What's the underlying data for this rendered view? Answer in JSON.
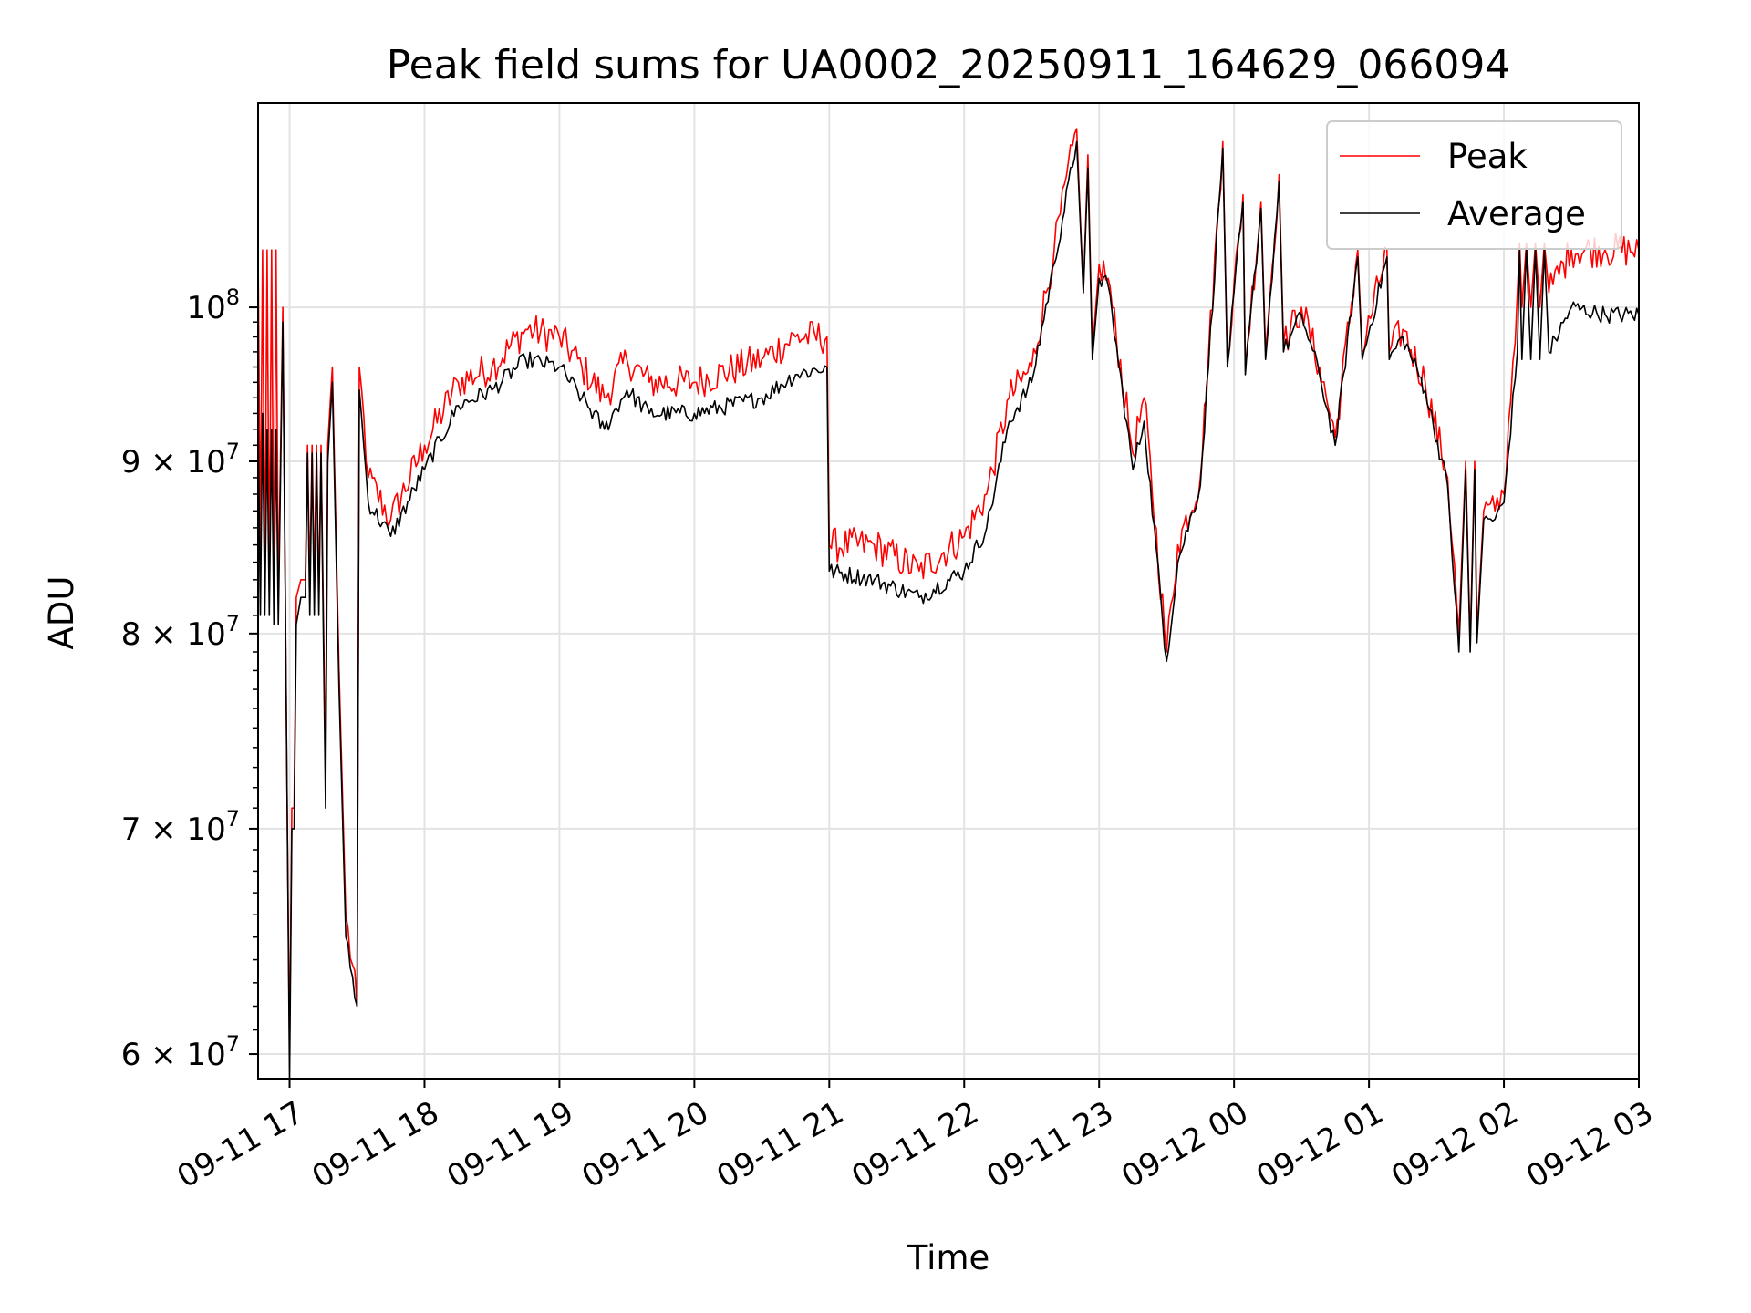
{
  "chart_data": {
    "type": "line",
    "title": "Peak field sums for UA0002_20250911_164629_066094",
    "xlabel": "Time",
    "ylabel": "ADU",
    "y_scale": "log",
    "xlim": [
      "2025-09-11 16:46",
      "2025-09-12 03:00"
    ],
    "ylim": [
      59000000,
      115000000
    ],
    "grid": true,
    "legend_position": "top-right",
    "x_ticks": [
      {
        "time": "2025-09-11 17:00",
        "label": "09-11 17"
      },
      {
        "time": "2025-09-11 18:00",
        "label": "09-11 18"
      },
      {
        "time": "2025-09-11 19:00",
        "label": "09-11 19"
      },
      {
        "time": "2025-09-11 20:00",
        "label": "09-11 20"
      },
      {
        "time": "2025-09-11 21:00",
        "label": "09-11 21"
      },
      {
        "time": "2025-09-11 22:00",
        "label": "09-11 22"
      },
      {
        "time": "2025-09-11 23:00",
        "label": "09-11 23"
      },
      {
        "time": "2025-09-12 00:00",
        "label": "09-12 00"
      },
      {
        "time": "2025-09-12 01:00",
        "label": "09-12 01"
      },
      {
        "time": "2025-09-12 02:00",
        "label": "09-12 02"
      },
      {
        "time": "2025-09-12 03:00",
        "label": "09-12 03"
      }
    ],
    "y_ticks": [
      {
        "value": 60000000,
        "mantissa": "6",
        "base": "10",
        "exp": "7"
      },
      {
        "value": 70000000,
        "mantissa": "7",
        "base": "10",
        "exp": "7"
      },
      {
        "value": 80000000,
        "mantissa": "8",
        "base": "10",
        "exp": "7"
      },
      {
        "value": 90000000,
        "mantissa": "9",
        "base": "10",
        "exp": "7"
      },
      {
        "value": 100000000,
        "mantissa": "",
        "base": "10",
        "exp": "8"
      }
    ],
    "series": [
      {
        "name": "Peak",
        "color": "#ff0000",
        "noise": 0.012,
        "points": [
          [
            "2025-09-11 16:46",
            104000000
          ],
          [
            "2025-09-11 16:47",
            85000000
          ],
          [
            "2025-09-11 16:48",
            104000000
          ],
          [
            "2025-09-11 16:49",
            83000000
          ],
          [
            "2025-09-11 16:50",
            104000000
          ],
          [
            "2025-09-11 16:51",
            83000000
          ],
          [
            "2025-09-11 16:52",
            104000000
          ],
          [
            "2025-09-11 16:53",
            82000000
          ],
          [
            "2025-09-11 16:54",
            104000000
          ],
          [
            "2025-09-11 16:55",
            82000000
          ],
          [
            "2025-09-11 16:57",
            100000000
          ],
          [
            "2025-09-11 16:59",
            70000000
          ],
          [
            "2025-09-11 17:00",
            60000000
          ],
          [
            "2025-09-11 17:01",
            71000000
          ],
          [
            "2025-09-11 17:02",
            71000000
          ],
          [
            "2025-09-11 17:03",
            82000000
          ],
          [
            "2025-09-11 17:05",
            83000000
          ],
          [
            "2025-09-11 17:07",
            83000000
          ],
          [
            "2025-09-11 17:08",
            91000000
          ],
          [
            "2025-09-11 17:09",
            83000000
          ],
          [
            "2025-09-11 17:10",
            91000000
          ],
          [
            "2025-09-11 17:11",
            83000000
          ],
          [
            "2025-09-11 17:12",
            91000000
          ],
          [
            "2025-09-11 17:13",
            82000000
          ],
          [
            "2025-09-11 17:14",
            91000000
          ],
          [
            "2025-09-11 17:16",
            73000000
          ],
          [
            "2025-09-11 17:17",
            91000000
          ],
          [
            "2025-09-11 17:19",
            96000000
          ],
          [
            "2025-09-11 17:22",
            78000000
          ],
          [
            "2025-09-11 17:25",
            66000000
          ],
          [
            "2025-09-11 17:30",
            62000000
          ],
          [
            "2025-09-11 17:31",
            96000000
          ],
          [
            "2025-09-11 17:35",
            89000000
          ],
          [
            "2025-09-11 17:45",
            86500000
          ],
          [
            "2025-09-11 18:00",
            91000000
          ],
          [
            "2025-09-11 18:15",
            95000000
          ],
          [
            "2025-09-11 18:30",
            96000000
          ],
          [
            "2025-09-11 18:45",
            98500000
          ],
          [
            "2025-09-11 19:00",
            98000000
          ],
          [
            "2025-09-11 19:10",
            96000000
          ],
          [
            "2025-09-11 19:20",
            94000000
          ],
          [
            "2025-09-11 19:30",
            96500000
          ],
          [
            "2025-09-11 19:40",
            95000000
          ],
          [
            "2025-09-11 20:00",
            95000000
          ],
          [
            "2025-09-11 20:30",
            96500000
          ],
          [
            "2025-09-11 20:45",
            98000000
          ],
          [
            "2025-09-11 20:59",
            98000000
          ],
          [
            "2025-09-11 21:00",
            85000000
          ],
          [
            "2025-09-11 21:20",
            85000000
          ],
          [
            "2025-09-11 21:40",
            83500000
          ],
          [
            "2025-09-11 22:00",
            85500000
          ],
          [
            "2025-09-11 22:10",
            88000000
          ],
          [
            "2025-09-11 22:20",
            94000000
          ],
          [
            "2025-09-11 22:30",
            96000000
          ],
          [
            "2025-09-11 22:40",
            104000000
          ],
          [
            "2025-09-11 22:50",
            113000000
          ],
          [
            "2025-09-11 22:53",
            101000000
          ],
          [
            "2025-09-11 22:55",
            111000000
          ],
          [
            "2025-09-11 22:57",
            97000000
          ],
          [
            "2025-09-11 23:00",
            103000000
          ],
          [
            "2025-09-11 23:04",
            102000000
          ],
          [
            "2025-09-11 23:15",
            90500000
          ],
          [
            "2025-09-11 23:20",
            94000000
          ],
          [
            "2025-09-11 23:30",
            79000000
          ],
          [
            "2025-09-11 23:35",
            85000000
          ],
          [
            "2025-09-11 23:45",
            89000000
          ],
          [
            "2025-09-11 23:55",
            112000000
          ],
          [
            "2025-09-11 23:57",
            96500000
          ],
          [
            "2025-09-12 00:04",
            108000000
          ],
          [
            "2025-09-12 00:05",
            96000000
          ],
          [
            "2025-09-12 00:12",
            107500000
          ],
          [
            "2025-09-12 00:14",
            97000000
          ],
          [
            "2025-09-12 00:20",
            109500000
          ],
          [
            "2025-09-12 00:22",
            97500000
          ],
          [
            "2025-09-12 00:30",
            100000000
          ],
          [
            "2025-09-12 00:38",
            96000000
          ],
          [
            "2025-09-12 00:45",
            91500000
          ],
          [
            "2025-09-12 00:55",
            104000000
          ],
          [
            "2025-09-12 00:57",
            97000000
          ],
          [
            "2025-09-12 01:08",
            104000000
          ],
          [
            "2025-09-12 01:09",
            97000000
          ],
          [
            "2025-09-12 01:15",
            98500000
          ],
          [
            "2025-09-12 01:25",
            95000000
          ],
          [
            "2025-09-12 01:35",
            89000000
          ],
          [
            "2025-09-12 01:40",
            80000000
          ],
          [
            "2025-09-12 01:43",
            90000000
          ],
          [
            "2025-09-12 01:45",
            79500000
          ],
          [
            "2025-09-12 01:47",
            90000000
          ],
          [
            "2025-09-12 01:48",
            80000000
          ],
          [
            "2025-09-12 01:51",
            87000000
          ],
          [
            "2025-09-12 01:56",
            87000000
          ],
          [
            "2025-09-12 02:00",
            88000000
          ],
          [
            "2025-09-12 02:06",
            101000000
          ],
          [
            "2025-09-12 02:07",
            104500000
          ],
          [
            "2025-09-12 02:08",
            100000000
          ],
          [
            "2025-09-12 02:10",
            104500000
          ],
          [
            "2025-09-12 02:12",
            100000000
          ],
          [
            "2025-09-12 02:14",
            104500000
          ],
          [
            "2025-09-12 02:16",
            100000000
          ],
          [
            "2025-09-12 02:18",
            104500000
          ],
          [
            "2025-09-12 02:20",
            101000000
          ],
          [
            "2025-09-12 02:30",
            104000000
          ],
          [
            "2025-09-12 02:45",
            104000000
          ],
          [
            "2025-09-12 03:00",
            104000000
          ]
        ]
      },
      {
        "name": "Average",
        "color": "#000000",
        "noise": 0.006,
        "points": [
          [
            "2025-09-11 16:46",
            93000000
          ],
          [
            "2025-09-11 16:47",
            81000000
          ],
          [
            "2025-09-11 16:48",
            93000000
          ],
          [
            "2025-09-11 16:49",
            81000000
          ],
          [
            "2025-09-11 16:50",
            92000000
          ],
          [
            "2025-09-11 16:51",
            81000000
          ],
          [
            "2025-09-11 16:52",
            92000000
          ],
          [
            "2025-09-11 16:53",
            80500000
          ],
          [
            "2025-09-11 16:54",
            92000000
          ],
          [
            "2025-09-11 16:55",
            80500000
          ],
          [
            "2025-09-11 16:57",
            99000000
          ],
          [
            "2025-09-11 16:59",
            70000000
          ],
          [
            "2025-09-11 17:00",
            59000000
          ],
          [
            "2025-09-11 17:01",
            70000000
          ],
          [
            "2025-09-11 17:02",
            70000000
          ],
          [
            "2025-09-11 17:03",
            80500000
          ],
          [
            "2025-09-11 17:05",
            82000000
          ],
          [
            "2025-09-11 17:07",
            82000000
          ],
          [
            "2025-09-11 17:08",
            90500000
          ],
          [
            "2025-09-11 17:09",
            81000000
          ],
          [
            "2025-09-11 17:10",
            90500000
          ],
          [
            "2025-09-11 17:11",
            81000000
          ],
          [
            "2025-09-11 17:12",
            90500000
          ],
          [
            "2025-09-11 17:13",
            81000000
          ],
          [
            "2025-09-11 17:14",
            90500000
          ],
          [
            "2025-09-11 17:16",
            71000000
          ],
          [
            "2025-09-11 17:17",
            90000000
          ],
          [
            "2025-09-11 17:19",
            95000000
          ],
          [
            "2025-09-11 17:22",
            77000000
          ],
          [
            "2025-09-11 17:25",
            65000000
          ],
          [
            "2025-09-11 17:30",
            62000000
          ],
          [
            "2025-09-11 17:31",
            94500000
          ],
          [
            "2025-09-11 17:35",
            87500000
          ],
          [
            "2025-09-11 17:45",
            85500000
          ],
          [
            "2025-09-11 18:00",
            89500000
          ],
          [
            "2025-09-11 18:15",
            93500000
          ],
          [
            "2025-09-11 18:30",
            94500000
          ],
          [
            "2025-09-11 18:45",
            96500000
          ],
          [
            "2025-09-11 19:00",
            96000000
          ],
          [
            "2025-09-11 19:10",
            94000000
          ],
          [
            "2025-09-11 19:20",
            92000000
          ],
          [
            "2025-09-11 19:30",
            94500000
          ],
          [
            "2025-09-11 19:40",
            93000000
          ],
          [
            "2025-09-11 20:00",
            93000000
          ],
          [
            "2025-09-11 20:30",
            94000000
          ],
          [
            "2025-09-11 20:45",
            95500000
          ],
          [
            "2025-09-11 20:59",
            96000000
          ],
          [
            "2025-09-11 21:00",
            83500000
          ],
          [
            "2025-09-11 21:20",
            83000000
          ],
          [
            "2025-09-11 21:40",
            82000000
          ],
          [
            "2025-09-11 22:00",
            83500000
          ],
          [
            "2025-09-11 22:10",
            86000000
          ],
          [
            "2025-09-11 22:20",
            92500000
          ],
          [
            "2025-09-11 22:30",
            95000000
          ],
          [
            "2025-09-11 22:40",
            103000000
          ],
          [
            "2025-09-11 22:50",
            112000000
          ],
          [
            "2025-09-11 22:53",
            101000000
          ],
          [
            "2025-09-11 22:55",
            110000000
          ],
          [
            "2025-09-11 22:57",
            96500000
          ],
          [
            "2025-09-11 23:00",
            102000000
          ],
          [
            "2025-09-11 23:04",
            101500000
          ],
          [
            "2025-09-11 23:15",
            89500000
          ],
          [
            "2025-09-11 23:20",
            92500000
          ],
          [
            "2025-09-11 23:30",
            78500000
          ],
          [
            "2025-09-11 23:35",
            84000000
          ],
          [
            "2025-09-11 23:45",
            88500000
          ],
          [
            "2025-09-11 23:55",
            111500000
          ],
          [
            "2025-09-11 23:57",
            96000000
          ],
          [
            "2025-09-12 00:04",
            107500000
          ],
          [
            "2025-09-12 00:05",
            95500000
          ],
          [
            "2025-09-12 00:12",
            107000000
          ],
          [
            "2025-09-12 00:14",
            96500000
          ],
          [
            "2025-09-12 00:20",
            109000000
          ],
          [
            "2025-09-12 00:22",
            97000000
          ],
          [
            "2025-09-12 00:30",
            99500000
          ],
          [
            "2025-09-12 00:38",
            95500000
          ],
          [
            "2025-09-12 00:45",
            91000000
          ],
          [
            "2025-09-12 00:55",
            103500000
          ],
          [
            "2025-09-12 00:57",
            96500000
          ],
          [
            "2025-09-12 01:08",
            103500000
          ],
          [
            "2025-09-12 01:09",
            96500000
          ],
          [
            "2025-09-12 01:15",
            98000000
          ],
          [
            "2025-09-12 01:25",
            94500000
          ],
          [
            "2025-09-12 01:35",
            88500000
          ],
          [
            "2025-09-12 01:40",
            79000000
          ],
          [
            "2025-09-12 01:43",
            89500000
          ],
          [
            "2025-09-12 01:45",
            79000000
          ],
          [
            "2025-09-12 01:47",
            89500000
          ],
          [
            "2025-09-12 01:48",
            79500000
          ],
          [
            "2025-09-12 01:51",
            86500000
          ],
          [
            "2025-09-12 01:56",
            86500000
          ],
          [
            "2025-09-12 02:00",
            87500000
          ],
          [
            "2025-09-12 02:06",
            97000000
          ],
          [
            "2025-09-12 02:07",
            104000000
          ],
          [
            "2025-09-12 02:08",
            96500000
          ],
          [
            "2025-09-12 02:10",
            104000000
          ],
          [
            "2025-09-12 02:12",
            96500000
          ],
          [
            "2025-09-12 02:14",
            104000000
          ],
          [
            "2025-09-12 02:16",
            96500000
          ],
          [
            "2025-09-12 02:18",
            104000000
          ],
          [
            "2025-09-12 02:20",
            97000000
          ],
          [
            "2025-09-12 02:30",
            100000000
          ],
          [
            "2025-09-12 02:45",
            99500000
          ],
          [
            "2025-09-12 03:00",
            99500000
          ]
        ]
      }
    ]
  }
}
